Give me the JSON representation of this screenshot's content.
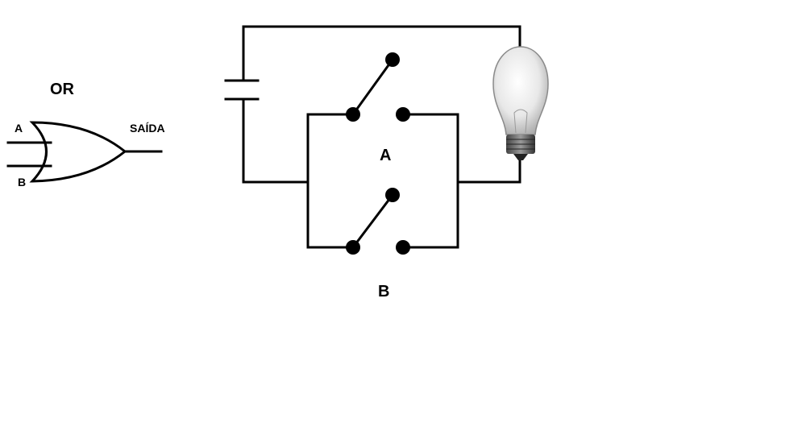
{
  "gate": {
    "title": "OR",
    "input_a": "A",
    "input_b": "B",
    "output": "SAÍDA"
  },
  "circuit": {
    "switch_a_label": "A",
    "switch_b_label": "B"
  }
}
